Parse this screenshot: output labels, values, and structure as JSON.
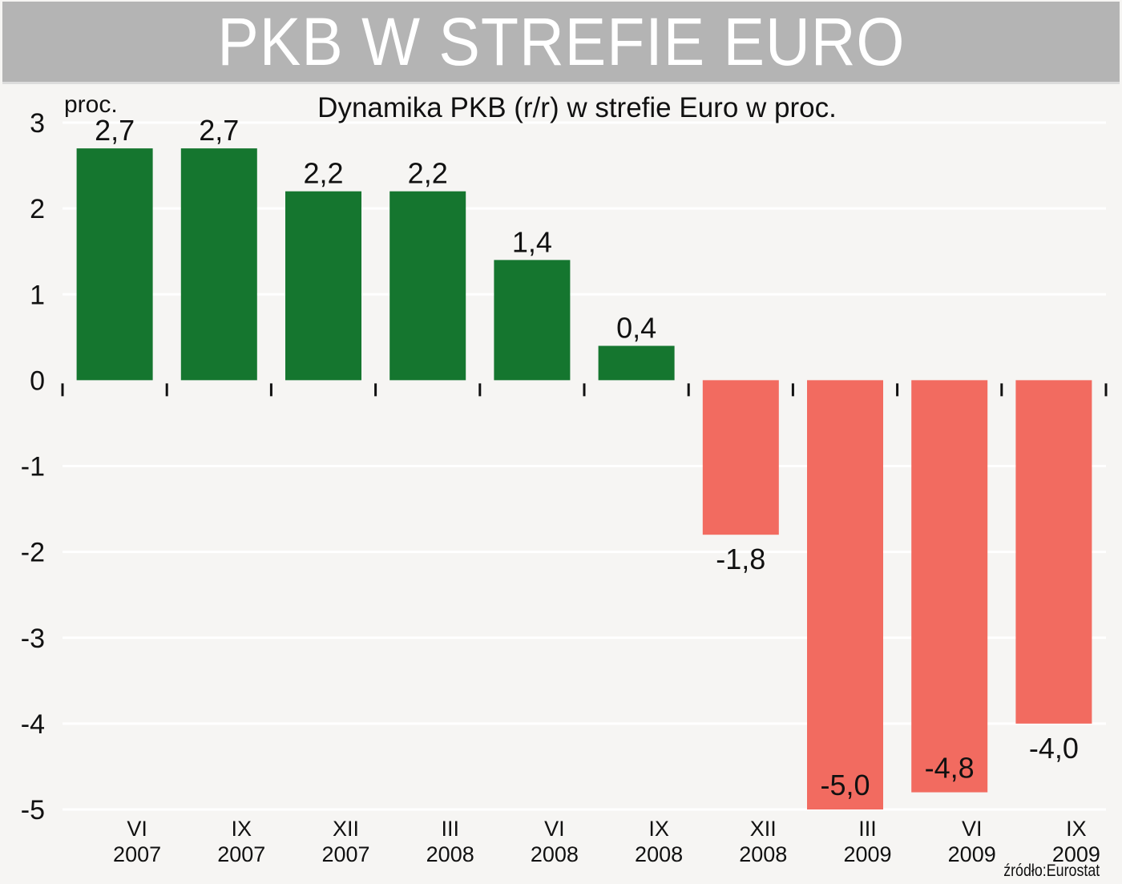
{
  "header": {
    "title": "PKB W STREFIE EURO"
  },
  "source": "źródło:Eurostat",
  "chart_data": {
    "type": "bar",
    "title": "Dynamika PKB (r/r) w strefie Euro w proc.",
    "unit_label": "proc.",
    "categories": [
      [
        "VI",
        "2007"
      ],
      [
        "IX",
        "2007"
      ],
      [
        "XII",
        "2007"
      ],
      [
        "III",
        "2008"
      ],
      [
        "VI",
        "2008"
      ],
      [
        "IX",
        "2008"
      ],
      [
        "XII",
        "2008"
      ],
      [
        "III",
        "2009"
      ],
      [
        "VI",
        "2009"
      ],
      [
        "IX",
        "2009"
      ]
    ],
    "values": [
      2.7,
      2.7,
      2.2,
      2.2,
      1.4,
      0.4,
      -1.8,
      -5.0,
      -4.8,
      -4.0
    ],
    "value_labels": [
      "2,7",
      "2,7",
      "2,2",
      "2,2",
      "1,4",
      "0,4",
      "-1,8",
      "-5,0",
      "-4,8",
      "-4,0"
    ],
    "ylim": [
      -5,
      3
    ],
    "yticks": [
      3,
      2,
      1,
      0,
      -1,
      -2,
      -3,
      -4,
      -5
    ],
    "ytick_labels": [
      "3",
      "2",
      "1",
      "0",
      "-1",
      "-2",
      "-3",
      "-4",
      "-5"
    ],
    "grid": true,
    "colors": {
      "positive": "#15762f",
      "negative": "#f26b60",
      "grid": "#ffffff"
    }
  }
}
